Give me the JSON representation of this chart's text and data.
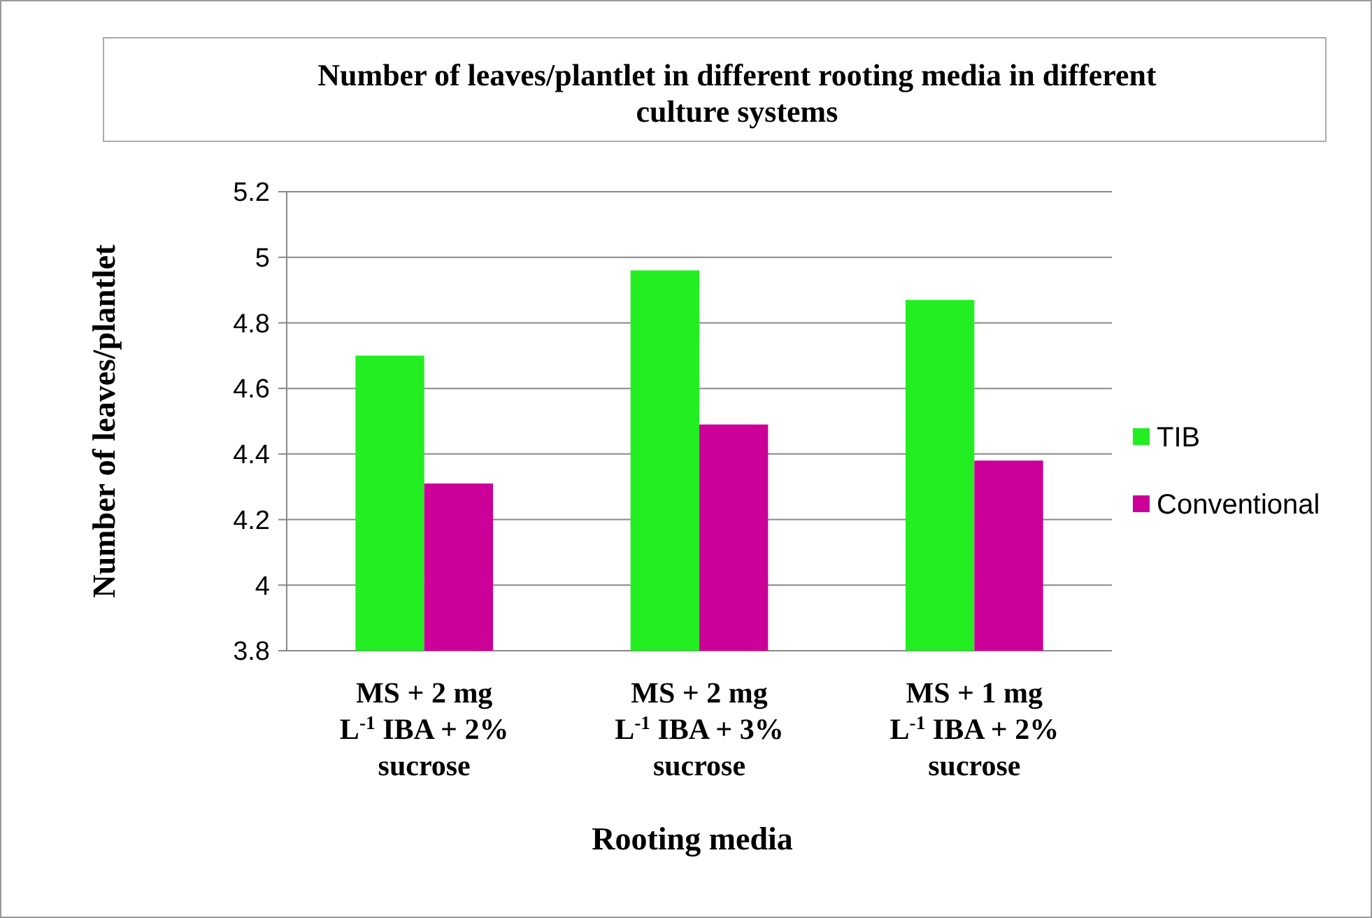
{
  "chart_data": {
    "type": "bar",
    "title": "Number of leaves/plantlet in different rooting media in different culture systems",
    "xlabel": "Rooting media",
    "ylabel": "Number of leaves/plantlet",
    "categories": [
      "MS + 2 mg L$^{-1}$ IBA + 2% sucrose",
      "MS + 2 mg L$^{-1}$ IBA + 3% sucrose",
      "MS + 1 mg L$^{-1}$ IBA + 2% sucrose"
    ],
    "series": [
      {
        "name": "TIB",
        "color": "#22ee22",
        "values": [
          4.7,
          4.96,
          4.87
        ]
      },
      {
        "name": "Conventional",
        "color": "#cc0099",
        "values": [
          4.31,
          4.49,
          4.38
        ]
      }
    ],
    "ylim": [
      3.8,
      5.2
    ],
    "yticks": [
      3.8,
      4,
      4.2,
      4.4,
      4.6,
      4.8,
      5,
      5.2
    ],
    "grid": "y",
    "legend": "right"
  }
}
